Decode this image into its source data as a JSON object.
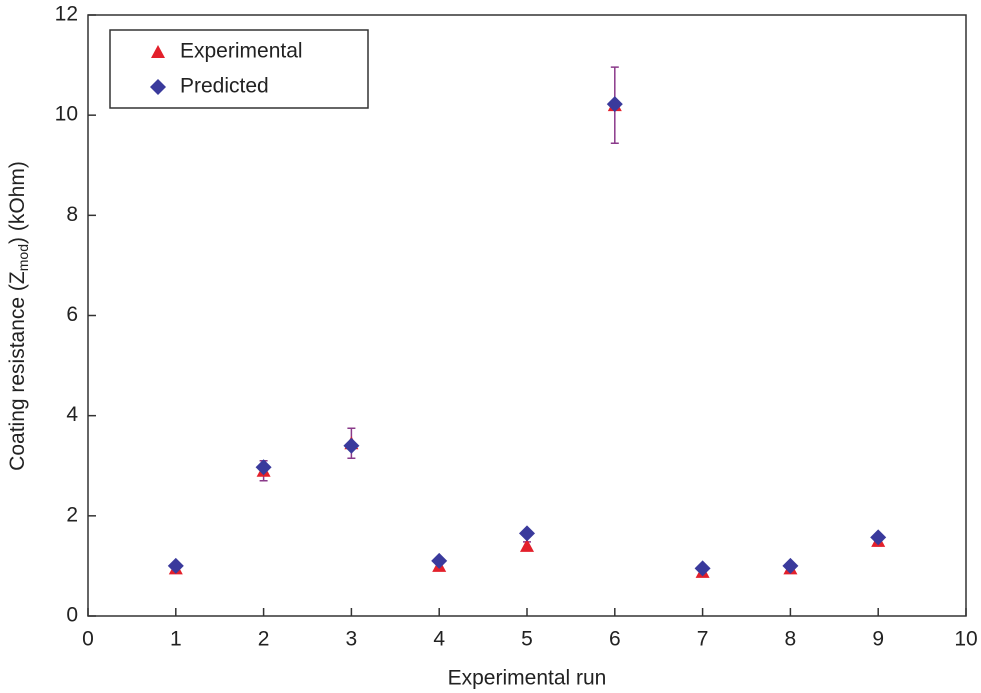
{
  "chart_data": {
    "type": "scatter",
    "x_label": "Experimental run",
    "y_label": {
      "text": "Coating resistance (Z",
      "subscript": "mod",
      "suffix": ") (kOhm)"
    },
    "x": [
      1,
      2,
      3,
      4,
      5,
      6,
      7,
      8,
      9
    ],
    "series": [
      {
        "name": "Experimental",
        "color": "#e3202b",
        "marker": "triangle",
        "values": [
          0.95,
          2.9,
          3.45,
          1.0,
          1.4,
          10.2,
          0.88,
          0.95,
          1.5
        ],
        "errors": [
          0.05,
          0.2,
          0.3,
          0.05,
          0.08,
          0.76,
          0.05,
          0.05,
          0.1
        ]
      },
      {
        "name": "Predicted",
        "color": "#3a3a9c",
        "marker": "diamond",
        "values": [
          1.0,
          2.97,
          3.4,
          1.1,
          1.65,
          10.22,
          0.95,
          1.0,
          1.57
        ]
      }
    ],
    "error_color": "#8a3a8a",
    "xlim": [
      0,
      10
    ],
    "xticks": [
      0,
      1,
      2,
      3,
      4,
      5,
      6,
      7,
      8,
      9,
      10
    ],
    "ylim": [
      0,
      12
    ],
    "yticks": [
      0,
      2,
      4,
      6,
      8,
      10,
      12
    ],
    "legend": "top-left"
  }
}
